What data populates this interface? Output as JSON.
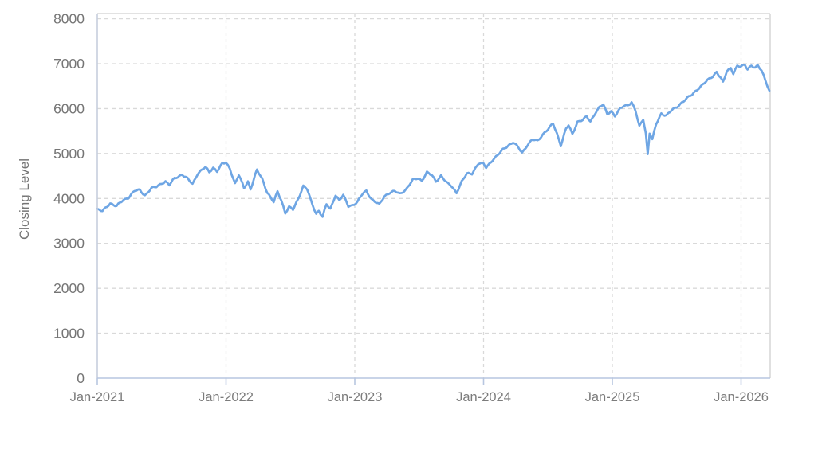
{
  "chart_data": {
    "type": "line",
    "title": "",
    "xlabel": "",
    "ylabel": "Closing Level",
    "ylim": [
      0,
      8000
    ],
    "grid": "dashed",
    "legend": "none",
    "yticks": [
      0,
      1000,
      2000,
      3000,
      4000,
      5000,
      6000,
      7000,
      8000
    ],
    "xticks": [
      {
        "label": "Jan-2021",
        "t": 0
      },
      {
        "label": "Jan-2022",
        "t": 1
      },
      {
        "label": "Jan-2023",
        "t": 2
      },
      {
        "label": "Jan-2024",
        "t": 3
      },
      {
        "label": "Jan-2025",
        "t": 4
      },
      {
        "label": "Jan-2026",
        "t": 5
      }
    ],
    "x_domain_years_since_jan2021": [
      0,
      5.226
    ],
    "colors": {
      "line": "#6FA6E4",
      "grid": "#d9d9d9",
      "border": "#d9d9d9",
      "y_axis": "#c7cedd",
      "x_axis": "#b7c6e0",
      "tick": "#b7c6e0",
      "text": "#757575"
    },
    "series": [
      {
        "name": "Closing Level",
        "points": [
          [
            0.0,
            3760
          ],
          [
            0.04,
            3715
          ],
          [
            0.1,
            3895
          ],
          [
            0.15,
            3830
          ],
          [
            0.2,
            3960
          ],
          [
            0.24,
            4020
          ],
          [
            0.29,
            4170
          ],
          [
            0.33,
            4185
          ],
          [
            0.37,
            4070
          ],
          [
            0.42,
            4225
          ],
          [
            0.46,
            4260
          ],
          [
            0.5,
            4340
          ],
          [
            0.53,
            4380
          ],
          [
            0.56,
            4300
          ],
          [
            0.6,
            4450
          ],
          [
            0.66,
            4535
          ],
          [
            0.7,
            4440
          ],
          [
            0.74,
            4320
          ],
          [
            0.78,
            4560
          ],
          [
            0.84,
            4700
          ],
          [
            0.87,
            4580
          ],
          [
            0.9,
            4690
          ],
          [
            0.93,
            4610
          ],
          [
            0.97,
            4770
          ],
          [
            1.0,
            4795
          ],
          [
            1.03,
            4670
          ],
          [
            1.07,
            4330
          ],
          [
            1.1,
            4520
          ],
          [
            1.14,
            4230
          ],
          [
            1.17,
            4380
          ],
          [
            1.19,
            4210
          ],
          [
            1.24,
            4630
          ],
          [
            1.28,
            4440
          ],
          [
            1.32,
            4140
          ],
          [
            1.37,
            3920
          ],
          [
            1.4,
            4150
          ],
          [
            1.43,
            3960
          ],
          [
            1.46,
            3680
          ],
          [
            1.49,
            3810
          ],
          [
            1.52,
            3750
          ],
          [
            1.56,
            3990
          ],
          [
            1.6,
            4280
          ],
          [
            1.63,
            4210
          ],
          [
            1.66,
            3940
          ],
          [
            1.7,
            3660
          ],
          [
            1.72,
            3730
          ],
          [
            1.75,
            3590
          ],
          [
            1.78,
            3870
          ],
          [
            1.81,
            3760
          ],
          [
            1.85,
            4080
          ],
          [
            1.88,
            3960
          ],
          [
            1.91,
            4070
          ],
          [
            1.95,
            3830
          ],
          [
            1.98,
            3850
          ],
          [
            2.02,
            3920
          ],
          [
            2.06,
            4100
          ],
          [
            2.09,
            4170
          ],
          [
            2.13,
            3985
          ],
          [
            2.19,
            3860
          ],
          [
            2.23,
            4050
          ],
          [
            2.27,
            4130
          ],
          [
            2.31,
            4160
          ],
          [
            2.35,
            4100
          ],
          [
            2.4,
            4210
          ],
          [
            2.45,
            4410
          ],
          [
            2.49,
            4450
          ],
          [
            2.52,
            4400
          ],
          [
            2.56,
            4580
          ],
          [
            2.6,
            4510
          ],
          [
            2.63,
            4380
          ],
          [
            2.67,
            4510
          ],
          [
            2.72,
            4330
          ],
          [
            2.75,
            4280
          ],
          [
            2.79,
            4130
          ],
          [
            2.83,
            4370
          ],
          [
            2.87,
            4550
          ],
          [
            2.91,
            4560
          ],
          [
            2.96,
            4780
          ],
          [
            3.0,
            4770
          ],
          [
            3.02,
            4690
          ],
          [
            3.07,
            4860
          ],
          [
            3.11,
            4960
          ],
          [
            3.15,
            5090
          ],
          [
            3.19,
            5180
          ],
          [
            3.23,
            5250
          ],
          [
            3.27,
            5130
          ],
          [
            3.3,
            5020
          ],
          [
            3.34,
            5190
          ],
          [
            3.38,
            5310
          ],
          [
            3.42,
            5280
          ],
          [
            3.46,
            5430
          ],
          [
            3.5,
            5540
          ],
          [
            3.54,
            5665
          ],
          [
            3.57,
            5440
          ],
          [
            3.6,
            5190
          ],
          [
            3.64,
            5550
          ],
          [
            3.66,
            5630
          ],
          [
            3.69,
            5430
          ],
          [
            3.73,
            5710
          ],
          [
            3.77,
            5750
          ],
          [
            3.8,
            5820
          ],
          [
            3.83,
            5710
          ],
          [
            3.87,
            5920
          ],
          [
            3.9,
            6030
          ],
          [
            3.93,
            6090
          ],
          [
            3.96,
            5880
          ],
          [
            3.99,
            5950
          ],
          [
            4.02,
            5840
          ],
          [
            4.06,
            5990
          ],
          [
            4.09,
            6060
          ],
          [
            4.12,
            6080
          ],
          [
            4.15,
            6145
          ],
          [
            4.18,
            5950
          ],
          [
            4.21,
            5600
          ],
          [
            4.24,
            5770
          ],
          [
            4.26,
            5450
          ],
          [
            4.275,
            4985
          ],
          [
            4.29,
            5460
          ],
          [
            4.31,
            5310
          ],
          [
            4.34,
            5650
          ],
          [
            4.38,
            5890
          ],
          [
            4.42,
            5850
          ],
          [
            4.46,
            5960
          ],
          [
            4.5,
            6030
          ],
          [
            4.54,
            6140
          ],
          [
            4.58,
            6230
          ],
          [
            4.62,
            6310
          ],
          [
            4.66,
            6430
          ],
          [
            4.7,
            6530
          ],
          [
            4.74,
            6630
          ],
          [
            4.78,
            6720
          ],
          [
            4.81,
            6820
          ],
          [
            4.84,
            6690
          ],
          [
            4.86,
            6580
          ],
          [
            4.89,
            6830
          ],
          [
            4.92,
            6910
          ],
          [
            4.94,
            6790
          ],
          [
            4.97,
            6950
          ],
          [
            5.0,
            6930
          ],
          [
            5.03,
            6975
          ],
          [
            5.05,
            6880
          ],
          [
            5.08,
            6965
          ],
          [
            5.11,
            6905
          ],
          [
            5.13,
            6950
          ],
          [
            5.16,
            6840
          ],
          [
            5.19,
            6630
          ],
          [
            5.22,
            6400
          ]
        ]
      }
    ]
  }
}
